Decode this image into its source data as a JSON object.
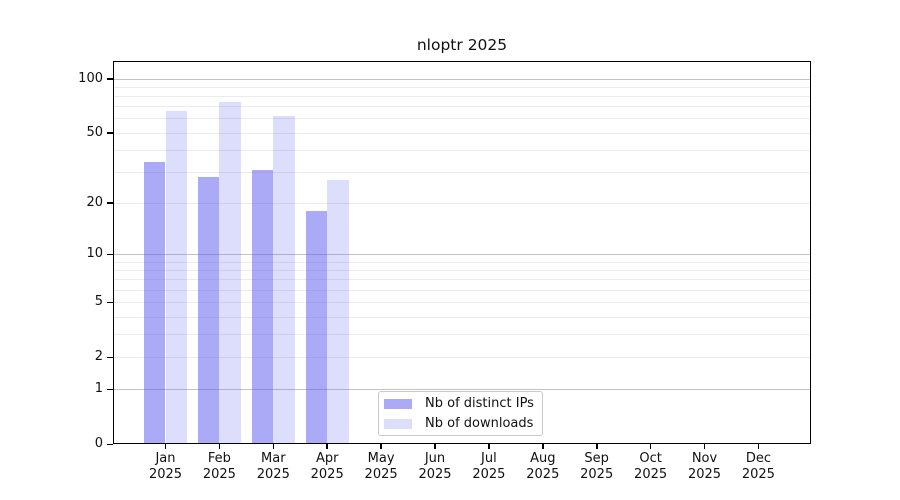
{
  "chart_data": {
    "type": "bar",
    "title": "nloptr 2025",
    "x_categories": [
      "Jan",
      "Feb",
      "Mar",
      "Apr",
      "May",
      "Jun",
      "Jul",
      "Aug",
      "Sep",
      "Oct",
      "Nov",
      "Dec"
    ],
    "x_year": "2025",
    "series": [
      {
        "name": "Nb of distinct IPs",
        "color": "rgba(85,85,240,0.5)",
        "swatch_hex": "#aaaaf8",
        "values": [
          34,
          28,
          31,
          18,
          null,
          null,
          null,
          null,
          null,
          null,
          null,
          null
        ]
      },
      {
        "name": "Nb of downloads",
        "color": "rgba(85,85,240,0.2)",
        "swatch_hex": "#ddddfc",
        "values": [
          66,
          74,
          62,
          27,
          null,
          null,
          null,
          null,
          null,
          null,
          null,
          null
        ]
      }
    ],
    "y_scale": "log1p",
    "ylim": [
      0,
      125
    ],
    "y_tick_values": [
      0,
      1,
      2,
      5,
      10,
      20,
      50,
      100
    ],
    "y_major_gridlines": [
      1,
      10,
      100
    ],
    "y_minor_gridlines": [
      2,
      3,
      4,
      5,
      6,
      7,
      8,
      9,
      20,
      30,
      40,
      50,
      60,
      70,
      80,
      90
    ],
    "grid": true,
    "legend_position": "lower-center-inside"
  },
  "colors": {
    "background": "#ffffff",
    "spine": "#000000",
    "major_grid": "#c3c3c3",
    "minor_grid": "#ebebeb",
    "text": "#111111"
  }
}
